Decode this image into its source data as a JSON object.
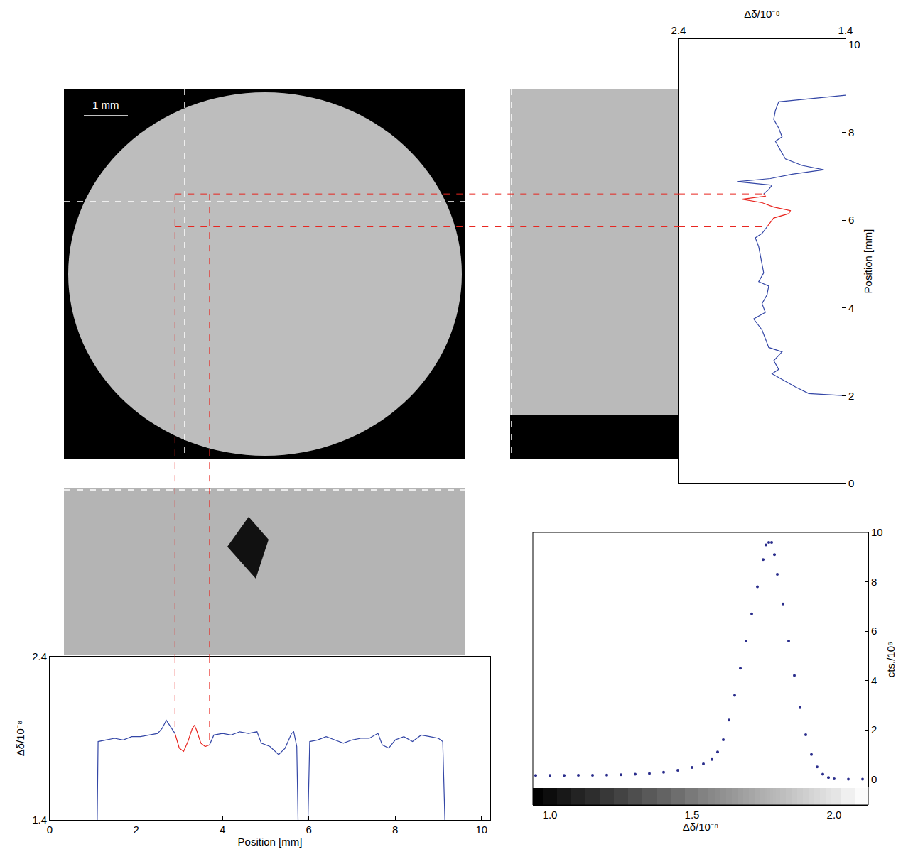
{
  "chart_data": [
    {
      "type": "line",
      "x_label": "Position [mm]",
      "y_label": "Δδ/10⁻⁸",
      "xlim": [
        0,
        10.2
      ],
      "xticks": [
        0,
        2,
        4,
        6,
        8,
        10
      ],
      "ylim": [
        1.4,
        2.4
      ],
      "yticks": [
        1.4,
        2.4
      ],
      "line_style": "solid",
      "series": [
        {
          "color": "#3346a6",
          "x": [
            1.1,
            1.12,
            1.3,
            1.5,
            1.7,
            1.9,
            2.1,
            2.3,
            2.5,
            2.6,
            2.7,
            2.8,
            2.9,
            3.3,
            3.7,
            3.8,
            4.0,
            4.2,
            4.4,
            4.6,
            4.8,
            4.9,
            5.1,
            5.3,
            5.45,
            5.6,
            5.65,
            5.72,
            5.75,
            5.85,
            5.98,
            6.02,
            6.2,
            6.4,
            6.6,
            6.8,
            7.0,
            7.2,
            7.4,
            7.6,
            7.7,
            7.85,
            8.0,
            8.2,
            8.4,
            8.6,
            8.8,
            9.0,
            9.1,
            9.15
          ],
          "values": [
            1.4,
            1.88,
            1.89,
            1.9,
            1.89,
            1.91,
            1.91,
            1.92,
            1.93,
            1.96,
            2.01,
            1.97,
            1.93,
            null,
            1.86,
            1.92,
            1.93,
            1.92,
            1.94,
            1.93,
            1.94,
            1.87,
            1.85,
            1.8,
            1.84,
            1.93,
            1.94,
            1.85,
            1.4,
            null,
            1.4,
            1.88,
            1.89,
            1.91,
            1.89,
            1.87,
            1.89,
            1.9,
            1.9,
            1.93,
            1.86,
            1.84,
            1.89,
            1.91,
            1.88,
            1.92,
            1.91,
            1.9,
            1.88,
            1.4
          ]
        },
        {
          "color": "#e8251f",
          "x": [
            2.9,
            3.0,
            3.1,
            3.2,
            3.3,
            3.35,
            3.4,
            3.5,
            3.6,
            3.7
          ],
          "values": [
            1.93,
            1.84,
            1.82,
            1.88,
            1.96,
            1.98,
            1.95,
            1.87,
            1.85,
            1.86
          ]
        }
      ]
    },
    {
      "type": "line",
      "orientation": "horizontal",
      "x_label": "Δδ/10⁻⁸",
      "y_label": "Position [mm]",
      "xlim": [
        2.4,
        1.4
      ],
      "xticks": [
        2.4,
        1.4
      ],
      "ylim": [
        0,
        10.13
      ],
      "yticks": [
        0,
        2,
        4,
        6,
        8,
        10
      ],
      "line_style": "solid",
      "series": [
        {
          "color": "#3346a6",
          "y": [
            2.0,
            2.05,
            2.2,
            2.4,
            2.5,
            2.6,
            2.8,
            3.0,
            3.1,
            3.3,
            3.5,
            3.75,
            3.9,
            4.1,
            4.3,
            4.5,
            4.6,
            4.8,
            5.0,
            5.2,
            5.4,
            5.6,
            5.7,
            5.85,
            6.2,
            6.6,
            6.7,
            6.8,
            6.88,
            6.95,
            7.05,
            7.15,
            7.25,
            7.4,
            7.6,
            7.8,
            7.9,
            8.1,
            8.3,
            8.5,
            8.7,
            8.85
          ],
          "values": [
            1.4,
            1.62,
            1.7,
            1.79,
            1.84,
            1.8,
            1.83,
            1.78,
            1.86,
            1.88,
            1.9,
            1.95,
            1.88,
            1.9,
            1.87,
            1.86,
            1.92,
            1.89,
            1.9,
            1.91,
            1.92,
            1.94,
            1.9,
            1.87,
            null,
            1.89,
            1.86,
            1.84,
            2.05,
            1.85,
            1.72,
            1.53,
            1.66,
            1.76,
            1.79,
            1.82,
            1.78,
            1.8,
            1.83,
            1.82,
            1.8,
            1.4
          ]
        },
        {
          "color": "#e8251f",
          "y": [
            5.85,
            5.95,
            6.05,
            6.15,
            6.22,
            6.3,
            6.4,
            6.48,
            6.55,
            6.6
          ],
          "values": [
            1.87,
            1.85,
            1.83,
            1.74,
            1.73,
            1.83,
            1.9,
            2.02,
            1.88,
            1.89
          ]
        }
      ]
    },
    {
      "type": "scatter",
      "marker": "dot",
      "color": "#2a2d8c",
      "x_label": "Δδ/10⁻⁸",
      "y_label": "cts./10⁶",
      "xlim": [
        0.94,
        2.12
      ],
      "xticks": [
        {
          "value": 1.0,
          "label": "1.0"
        },
        1.5,
        {
          "value": 2.0,
          "label": "2.0"
        }
      ],
      "ylim": [
        -0.3,
        10
      ],
      "yticks": [
        0,
        2,
        4,
        6,
        8,
        10
      ],
      "x": [
        0.95,
        1.0,
        1.05,
        1.1,
        1.15,
        1.2,
        1.25,
        1.3,
        1.35,
        1.4,
        1.45,
        1.5,
        1.54,
        1.57,
        1.59,
        1.61,
        1.63,
        1.65,
        1.67,
        1.69,
        1.71,
        1.73,
        1.75,
        1.76,
        1.77,
        1.78,
        1.79,
        1.8,
        1.82,
        1.84,
        1.86,
        1.88,
        1.9,
        1.92,
        1.94,
        1.96,
        1.98,
        2.0,
        2.05,
        2.1
      ],
      "values": [
        0.15,
        0.15,
        0.15,
        0.16,
        0.16,
        0.17,
        0.18,
        0.2,
        0.23,
        0.28,
        0.36,
        0.48,
        0.62,
        0.8,
        1.1,
        1.6,
        2.4,
        3.4,
        4.5,
        5.6,
        6.7,
        7.8,
        8.9,
        9.5,
        9.6,
        9.6,
        9.1,
        8.3,
        7.1,
        5.6,
        4.2,
        2.9,
        1.8,
        1.0,
        0.5,
        0.2,
        0.07,
        0.02,
        0.0,
        0.0
      ]
    }
  ],
  "image_panels": {
    "scale_bar": "1 mm"
  }
}
